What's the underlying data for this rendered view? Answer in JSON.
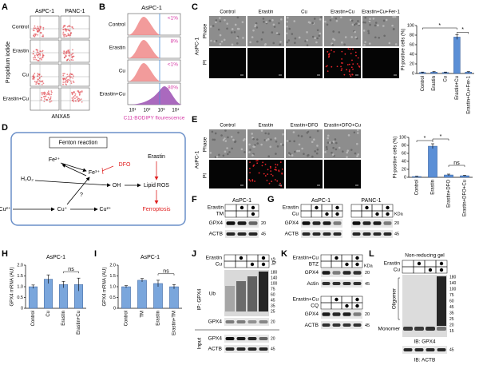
{
  "panels": {
    "A": {
      "label": "A",
      "columns": [
        "AsPC-1",
        "PANC-1"
      ],
      "rows": [
        "Control",
        "Erastin",
        "Cu",
        "Erastin+Cu"
      ],
      "ylabel": "Propidium iodide",
      "xlabel": "ANXA5"
    },
    "B": {
      "label": "B",
      "title": "AsPC-1",
      "rows": [
        "Control",
        "Erastin",
        "Cu",
        "Erastin+Cu"
      ],
      "percents": [
        "<1%",
        "8%",
        "<1%",
        "80%"
      ],
      "xticks": [
        "10¹",
        "10²",
        "10³",
        "10⁴"
      ],
      "xlabel": "C11-BODIPY flourescence"
    },
    "C": {
      "label": "C",
      "columns": [
        "Control",
        "Erastin",
        "Cu",
        "Erastin+Cu",
        "Erastin+Cu+Fer-1"
      ],
      "rows": [
        "Phase",
        "PI"
      ],
      "side": "AsPC-1"
    },
    "D": {
      "label": "D",
      "box": "Fenton reaction",
      "nodes": [
        "Fe²⁺",
        "Fe³⁺",
        "DFO",
        "H₂O₂",
        "OH",
        "Erastin",
        "Lipid ROS",
        "Ferroptosis",
        "Cu²⁺",
        "Cu⁺",
        "Cu²⁺",
        "?"
      ]
    },
    "E": {
      "label": "E",
      "columns": [
        "Control",
        "Erastin",
        "Erastin+DFO",
        "Erastin+DFO+Cu"
      ],
      "rows": [
        "Phase",
        "PI"
      ],
      "side": "AsPC-1"
    },
    "F": {
      "label": "F",
      "title": "AsPC-1",
      "treatments": [
        "Erastin",
        "TM"
      ],
      "design": [
        [
          false,
          true,
          true
        ],
        [
          false,
          false,
          true
        ]
      ],
      "bands": [
        "GPX4",
        "ACTB"
      ],
      "markers": [
        "20",
        "45"
      ]
    },
    "G": {
      "label": "G",
      "cells": [
        "AsPC-1",
        "PANC-1"
      ],
      "treatments": [
        "Erastin",
        "Cu"
      ],
      "design": [
        [
          false,
          true,
          false,
          true
        ],
        [
          false,
          false,
          true,
          true
        ]
      ],
      "unit": "KDa",
      "bands": [
        "GPX4",
        "ACTB"
      ],
      "markers": [
        "20",
        "45"
      ]
    },
    "H": {
      "label": "H"
    },
    "I": {
      "label": "I"
    },
    "J": {
      "label": "J",
      "treatments": [
        "Erastin",
        "Cu"
      ],
      "design": [
        [
          false,
          true,
          false,
          true
        ],
        [
          false,
          false,
          true,
          true
        ]
      ],
      "igg": "IgG",
      "ip": "IP: GPX4",
      "input": "Input",
      "bands": [
        "Ub",
        "GPX4",
        "GPX4",
        "ACTB"
      ],
      "markers": [
        "180",
        "140",
        "100",
        "75",
        "60",
        "45",
        "35",
        "25",
        "20",
        "20",
        "45"
      ]
    },
    "K": {
      "label": "K",
      "unit": "KDa",
      "top": {
        "treatments": [
          "Erastin+Cu",
          "BTZ"
        ],
        "design": [
          [
            false,
            true,
            false,
            true
          ],
          [
            false,
            false,
            true,
            true
          ]
        ],
        "bands": [
          "GPX4",
          "Actin"
        ],
        "markers": [
          "20",
          "45"
        ]
      },
      "bottom": {
        "treatments": [
          "Erastin+Cu",
          "CQ"
        ],
        "design": [
          [
            false,
            true,
            false,
            true
          ],
          [
            false,
            false,
            true,
            true
          ]
        ],
        "bands": [
          "GPX4",
          "ACTB"
        ],
        "markers": [
          "20",
          "45"
        ]
      }
    },
    "L": {
      "label": "L",
      "title": "Non-reducing gel",
      "treatments": [
        "Erastin",
        "Cu"
      ],
      "design": [
        [
          false,
          true,
          false,
          true
        ],
        [
          false,
          false,
          true,
          true
        ]
      ],
      "oligomer": "Oligomer",
      "monomer": "Monomer",
      "ib1": "IB: GPX4",
      "ib2": "IB: ACTB",
      "markers": [
        "180",
        "140",
        "100",
        "75",
        "60",
        "45",
        "35",
        "25",
        "20",
        "15",
        "45"
      ]
    }
  },
  "chart_data": [
    {
      "type": "bar",
      "ylabel": "PI-positive cells (%)",
      "categories": [
        "Control",
        "Erastin",
        "Cu",
        "Erastin+Cu",
        "Erastin+Cu+Fer-1"
      ],
      "values": [
        2,
        3,
        2,
        76,
        3
      ],
      "errors": [
        1,
        1,
        1,
        5,
        1
      ],
      "ylim": [
        0,
        100
      ],
      "yticks": [
        0,
        20,
        40,
        60,
        80,
        100
      ],
      "color": "#5b8fd6",
      "annotations": [
        "*",
        "*"
      ]
    },
    {
      "type": "bar",
      "ylabel": "PI-positive cells (%)",
      "categories": [
        "Control",
        "Erastin",
        "Erastin+DFO",
        "Erastin+DFO+Cu"
      ],
      "values": [
        2,
        78,
        6,
        4
      ],
      "errors": [
        1,
        6,
        2,
        1
      ],
      "ylim": [
        0,
        100
      ],
      "yticks": [
        0,
        20,
        40,
        60,
        80,
        100
      ],
      "color": "#5b8fd6",
      "annotations": [
        "*",
        "*",
        "ns"
      ]
    },
    {
      "type": "bar",
      "title": "AsPC-1",
      "ylabel": "GPX4 mRNA (AU)",
      "categories": [
        "Control",
        "Cu",
        "Erastin",
        "Erastin+Cu"
      ],
      "values": [
        1.0,
        1.35,
        1.1,
        1.1
      ],
      "errors": [
        0.08,
        0.2,
        0.15,
        0.3
      ],
      "ylim": [
        0,
        2
      ],
      "yticks": [
        0,
        0.5,
        {
          "value": 1,
          "label": "1.0"
        },
        1.5,
        {
          "value": 2,
          "label": "2.0"
        }
      ],
      "color": "#7aa6dc",
      "annotations": [
        "ns"
      ]
    },
    {
      "type": "bar",
      "title": "AsPC-1",
      "ylabel": "GPX4 mRNA (AU)",
      "categories": [
        "Control",
        "TM",
        "Erastin",
        "Erastin+TM"
      ],
      "values": [
        1.0,
        1.3,
        1.15,
        1.0
      ],
      "errors": [
        0.05,
        0.08,
        0.15,
        0.1
      ],
      "ylim": [
        0,
        2
      ],
      "yticks": [
        0,
        0.5,
        {
          "value": 1,
          "label": "1.0"
        },
        1.5,
        {
          "value": 2,
          "label": "2.0"
        }
      ],
      "color": "#7aa6dc",
      "annotations": [
        "ns"
      ]
    }
  ]
}
